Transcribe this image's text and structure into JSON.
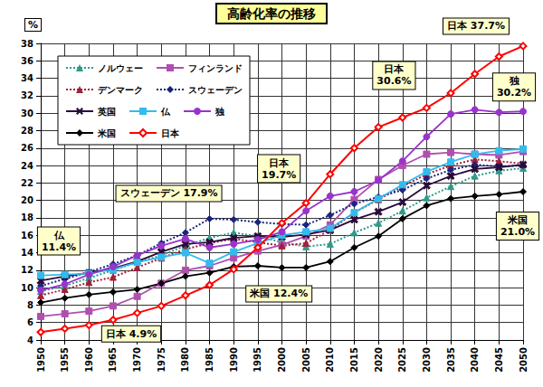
{
  "chart_data": {
    "type": "line",
    "title": "高齢化率の推移",
    "y_label": "%",
    "categories": [
      "1950",
      "1955",
      "1960",
      "1965",
      "1970",
      "1975",
      "1980",
      "1985",
      "1990",
      "1995",
      "2000",
      "2005",
      "2010",
      "2015",
      "2020",
      "2025",
      "2030",
      "2035",
      "2040",
      "2045",
      "2050"
    ],
    "ylim": [
      4,
      38
    ],
    "yticks": [
      4,
      6,
      8,
      10,
      12,
      14,
      16,
      18,
      20,
      22,
      24,
      26,
      28,
      30,
      32,
      34,
      36,
      38
    ],
    "grid": true,
    "legend": "upper left",
    "series": [
      {
        "name": "ノルウェー",
        "color": "#2e9a8a",
        "marker": "triangle",
        "line_style": "dotted",
        "values": [
          9.6,
          10.2,
          11.1,
          12.0,
          12.9,
          13.7,
          14.8,
          15.7,
          16.3,
          15.9,
          15.2,
          14.7,
          15.0,
          16.3,
          17.4,
          18.8,
          20.3,
          21.6,
          22.8,
          23.4,
          23.7
        ]
      },
      {
        "name": "フィンランド",
        "color": "#b04fb0",
        "marker": "square",
        "line_style": "solid",
        "values": [
          6.7,
          7.0,
          7.3,
          7.9,
          9.0,
          10.5,
          12.0,
          12.5,
          13.4,
          14.2,
          14.9,
          15.9,
          17.2,
          20.1,
          22.4,
          24.0,
          25.3,
          25.5,
          25.3,
          25.2,
          25.6
        ]
      },
      {
        "name": "デンマーク",
        "color": "#a0203a",
        "marker": "triangle",
        "line_style": "dotted",
        "values": [
          9.1,
          9.8,
          10.6,
          11.2,
          12.3,
          13.4,
          14.4,
          15.1,
          15.6,
          15.2,
          14.8,
          15.1,
          16.6,
          18.6,
          20.1,
          21.6,
          23.0,
          24.0,
          24.7,
          24.5,
          24.2
        ]
      },
      {
        "name": "スウェーデン",
        "color": "#1a237e",
        "marker": "diamond",
        "line_style": "dotted",
        "values": [
          10.2,
          11.0,
          11.8,
          12.7,
          13.7,
          15.1,
          16.3,
          17.9,
          17.8,
          17.5,
          17.3,
          17.2,
          18.3,
          19.6,
          20.4,
          21.2,
          22.5,
          23.5,
          24.1,
          23.9,
          24.0
        ]
      },
      {
        "name": "英国",
        "color": "#2a0a3a",
        "marker": "x",
        "line_style": "solid",
        "values": [
          10.8,
          11.3,
          11.7,
          12.2,
          13.0,
          14.1,
          15.0,
          15.2,
          15.7,
          15.9,
          15.8,
          16.1,
          16.6,
          17.8,
          18.7,
          19.8,
          21.7,
          22.8,
          23.6,
          23.8,
          24.1
        ]
      },
      {
        "name": "仏",
        "color": "#33bbee",
        "marker": "square",
        "line_style": "solid",
        "values": [
          11.4,
          11.5,
          11.6,
          12.1,
          12.9,
          13.5,
          14.0,
          12.8,
          14.1,
          15.1,
          16.0,
          16.4,
          16.8,
          18.6,
          20.2,
          21.8,
          23.3,
          24.4,
          25.3,
          25.7,
          25.9
        ]
      },
      {
        "name": "独",
        "color": "#9933cc",
        "marker": "circle",
        "line_style": "solid",
        "values": [
          9.7,
          10.4,
          11.5,
          12.4,
          13.7,
          14.8,
          15.6,
          14.6,
          15.0,
          15.5,
          16.4,
          18.8,
          20.5,
          21.0,
          22.3,
          24.5,
          27.3,
          29.9,
          30.4,
          30.1,
          30.2
        ]
      },
      {
        "name": "米国",
        "color": "#000000",
        "marker": "diamond",
        "line_style": "solid",
        "values": [
          8.3,
          8.8,
          9.2,
          9.5,
          9.8,
          10.5,
          11.3,
          11.7,
          12.4,
          12.5,
          12.3,
          12.3,
          13.0,
          14.6,
          15.9,
          17.9,
          19.4,
          20.2,
          20.5,
          20.7,
          21.0
        ]
      },
      {
        "name": "日本",
        "color": "#ff0000",
        "marker": "open_diamond",
        "line_style": "solid",
        "values": [
          4.9,
          5.3,
          5.7,
          6.3,
          7.1,
          7.9,
          9.1,
          10.3,
          12.1,
          14.6,
          17.4,
          19.7,
          23.0,
          26.0,
          28.4,
          29.5,
          30.6,
          32.3,
          34.5,
          36.5,
          37.7
        ]
      }
    ],
    "annotations": [
      {
        "series": "日本",
        "x": "2050",
        "text": "日本 37.7%"
      },
      {
        "series": "日本",
        "x": "2030",
        "text": "日本\n30.6%"
      },
      {
        "series": "独",
        "x": "2050",
        "text": "独\n30.2%"
      },
      {
        "series": "日本",
        "x": "2005",
        "text": "日本\n19.7%"
      },
      {
        "series": "スウェーデン",
        "x": "1985",
        "text": "スウェーデン 17.9%"
      },
      {
        "series": "仏",
        "x": "1950",
        "text": "仏\n11.4%"
      },
      {
        "series": "米国",
        "x": "1990",
        "text": "米国 12.4%"
      },
      {
        "series": "米国",
        "x": "2050",
        "text": "米国\n21.0%"
      },
      {
        "series": "日本",
        "x": "1950",
        "text": "日本 4.9%"
      }
    ]
  }
}
